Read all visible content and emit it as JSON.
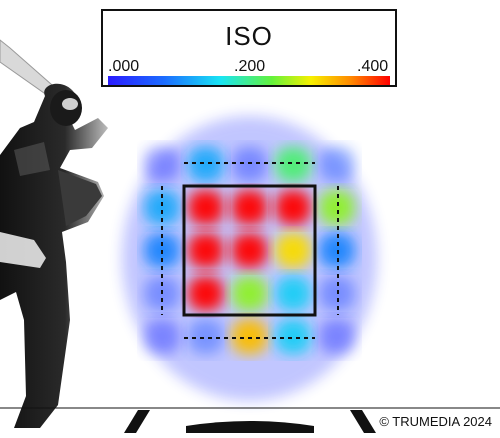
{
  "legend": {
    "title": "ISO",
    "tick_min": ".000",
    "tick_mid": ".200",
    "tick_max": ".400"
  },
  "credit": "© TRUMEDIA 2024",
  "colors": {
    "scale": [
      "#2a1bff",
      "#1c6dff",
      "#19e5f3",
      "#63f23c",
      "#f7f000",
      "#ff8a00",
      "#ff0000"
    ],
    "zone_border": "#111111"
  },
  "chart_data": {
    "type": "heatmap",
    "title": "ISO",
    "metric": "ISO",
    "color_scale_range": [
      0.0,
      0.4
    ],
    "color_scale_ticks": [
      ".000",
      ".200",
      ".400"
    ],
    "view": "strike zone from catcher's perspective, right-handed batter",
    "grid_columns": 5,
    "grid_rows": 5,
    "grid_note": "values estimated by color; rows top to bottom, columns left to right (inside to outside); zone = middle 3x3",
    "values": [
      [
        0.02,
        0.1,
        0.03,
        0.18,
        0.05
      ],
      [
        0.1,
        0.4,
        0.4,
        0.4,
        0.22
      ],
      [
        0.08,
        0.4,
        0.4,
        0.28,
        0.08
      ],
      [
        0.04,
        0.4,
        0.22,
        0.12,
        0.04
      ],
      [
        0.02,
        0.05,
        0.3,
        0.12,
        0.02
      ]
    ]
  }
}
